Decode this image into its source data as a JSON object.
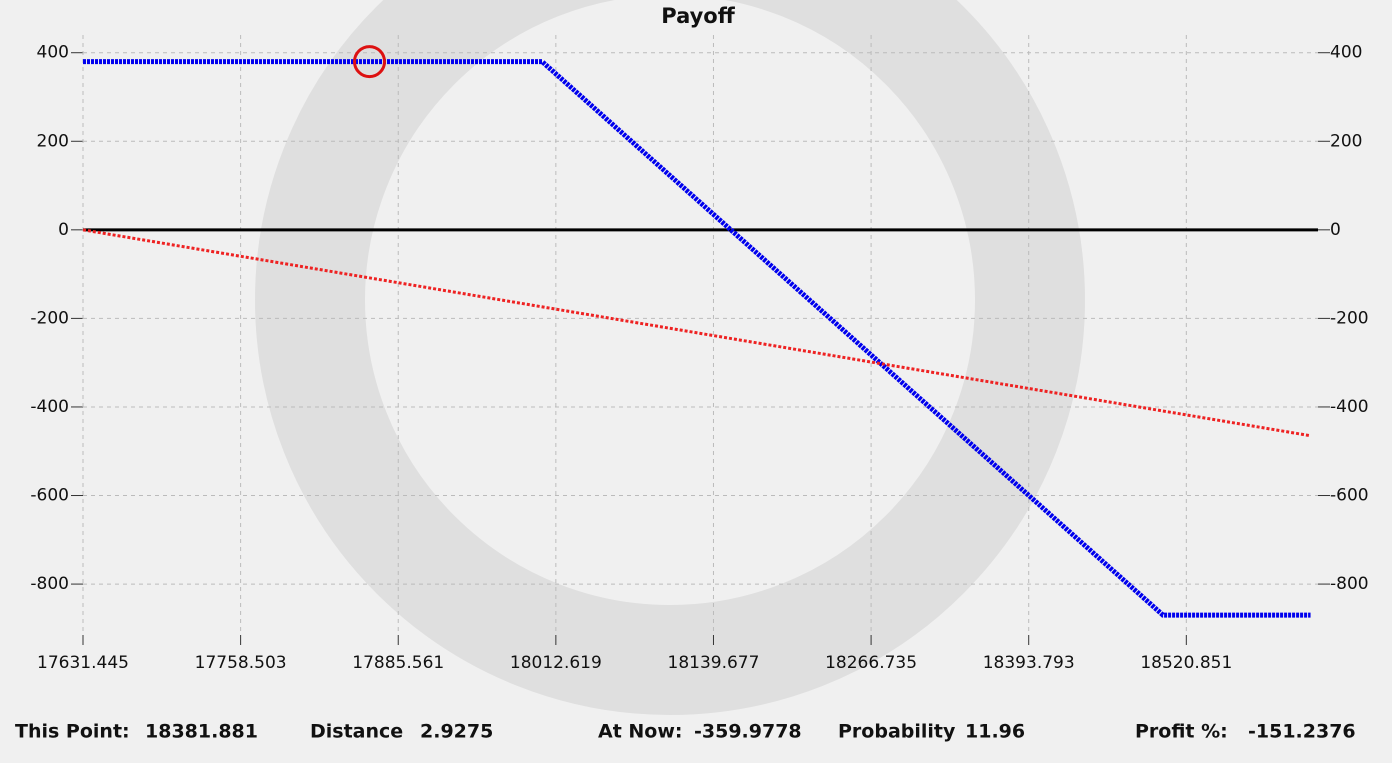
{
  "chart_data": {
    "type": "line",
    "title": "Payoff",
    "series": [
      {
        "color": "#0000ee",
        "x": [
          17631.445,
          18001.5,
          18502,
          18621
        ],
        "values": [
          380,
          380,
          -870,
          -870
        ]
      },
      {
        "color": "#ee2222",
        "x": [
          17631.445,
          18621
        ],
        "values": [
          0,
          -465
        ]
      }
    ],
    "marker": {
      "x": 17862.4,
      "y": 380,
      "color": "#dd1111"
    },
    "xlim": [
      17631.445,
      18627
    ],
    "ylim": [
      -915,
      440
    ],
    "xticks": [
      17631.445,
      17758.503,
      17885.561,
      18012.619,
      18139.677,
      18266.735,
      18393.793,
      18520.851
    ],
    "yticks": [
      400,
      200,
      0,
      -200,
      -400,
      -600,
      -800
    ],
    "grid": true
  },
  "status": [
    {
      "label": "This Point:",
      "value": 18381.881
    },
    {
      "label": "Distance",
      "value": 2.9275
    },
    {
      "label": "At Now:",
      "value": -359.9778
    },
    {
      "label": "Probability",
      "value": 11.96
    },
    {
      "label": "Profit %:",
      "value": -151.2376
    }
  ]
}
